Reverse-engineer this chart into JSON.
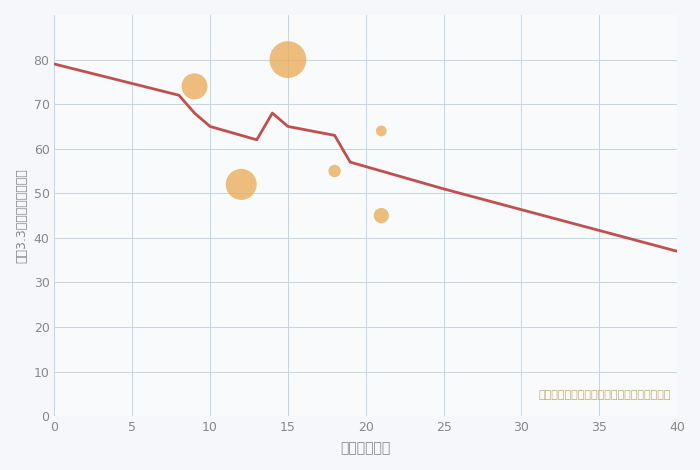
{
  "xlabel": "築年数（年）",
  "ylabel": "坪（3.3㎡）単価（万円）",
  "annotation": "円の大きさは、取引のあった物件面積を示す",
  "bg_color": "#f5f7fa",
  "plot_bg_color": "#f8fafc",
  "line_color": "#c0504d",
  "line_x": [
    0,
    8,
    9,
    10,
    13,
    14,
    15,
    18,
    19,
    20,
    22,
    24,
    25,
    40
  ],
  "line_y": [
    79,
    72,
    68,
    65,
    62,
    68,
    65,
    63,
    57,
    56,
    54,
    52,
    51,
    37
  ],
  "bubble_x": [
    9,
    12,
    15,
    18,
    21,
    21
  ],
  "bubble_y": [
    74,
    52,
    80,
    55,
    45,
    64
  ],
  "bubble_size": [
    350,
    500,
    700,
    80,
    120,
    60
  ],
  "bubble_color": "#e8a951",
  "bubble_alpha": 0.75,
  "xlim": [
    0,
    40
  ],
  "ylim": [
    0,
    90
  ],
  "xticks": [
    0,
    5,
    10,
    15,
    20,
    25,
    30,
    35,
    40
  ],
  "yticks": [
    0,
    10,
    20,
    30,
    40,
    50,
    60,
    70,
    80
  ],
  "grid_color": "#c5d5e5",
  "title_color": "#666666",
  "annotation_color": "#c8a870",
  "axis_label_color": "#888888",
  "tick_color": "#888888",
  "title_fontsize": 16,
  "axis_fontsize": 10,
  "annot_fontsize": 8
}
